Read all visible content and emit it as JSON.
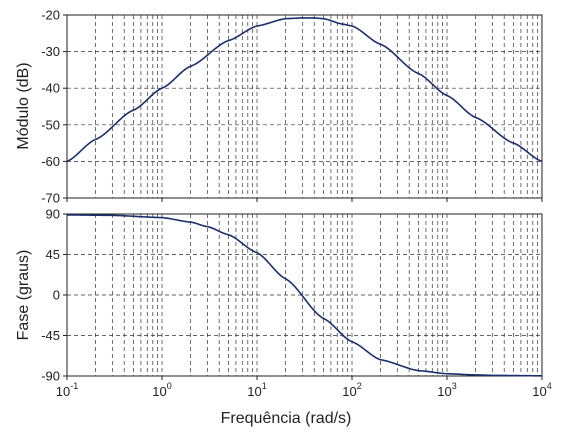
{
  "chart_data": [
    {
      "type": "line",
      "panel": "magnitude",
      "ylabel": "Módulo (dB)",
      "x_scale": "log",
      "xlim": [
        0.1,
        10000
      ],
      "ylim": [
        -70,
        -20
      ],
      "yticks": [
        "-20",
        "-30",
        "-40",
        "-50",
        "-60",
        "-70"
      ],
      "grid": true,
      "color": "#1a2f6e",
      "series": [
        {
          "x": [
            0.1,
            0.2,
            0.5,
            1,
            2,
            5,
            10,
            20,
            30,
            40,
            50,
            80,
            100,
            200,
            500,
            1000,
            2000,
            5000,
            10000
          ],
          "values": [
            -60,
            -54,
            -46,
            -40,
            -34,
            -27,
            -23,
            -21,
            -20.8,
            -20.8,
            -21,
            -22.5,
            -23,
            -28,
            -36,
            -42,
            -48,
            -55,
            -60
          ]
        }
      ]
    },
    {
      "type": "line",
      "panel": "phase",
      "ylabel": "Fase (graus)",
      "xlabel": "Frequência (rad/s)",
      "x_scale": "log",
      "xlim": [
        0.1,
        10000
      ],
      "ylim": [
        -90,
        90
      ],
      "yticks": [
        "90",
        "45",
        "0",
        "-45",
        "-90"
      ],
      "xticks": [
        {
          "base": "10",
          "exp": "-1"
        },
        {
          "base": "10",
          "exp": "0"
        },
        {
          "base": "10",
          "exp": "1"
        },
        {
          "base": "10",
          "exp": "2"
        },
        {
          "base": "10",
          "exp": "3"
        },
        {
          "base": "10",
          "exp": "4"
        }
      ],
      "grid": true,
      "color": "#1a2f6e",
      "series": [
        {
          "x": [
            0.1,
            0.3,
            1,
            2,
            3,
            5,
            10,
            20,
            50,
            100,
            200,
            500,
            1000,
            2000,
            3000,
            10000
          ],
          "values": [
            89,
            88.5,
            86,
            81,
            76,
            67,
            47,
            18,
            -26,
            -52,
            -72,
            -84,
            -87.5,
            -88.8,
            -89.3,
            -89.8
          ]
        }
      ]
    }
  ]
}
